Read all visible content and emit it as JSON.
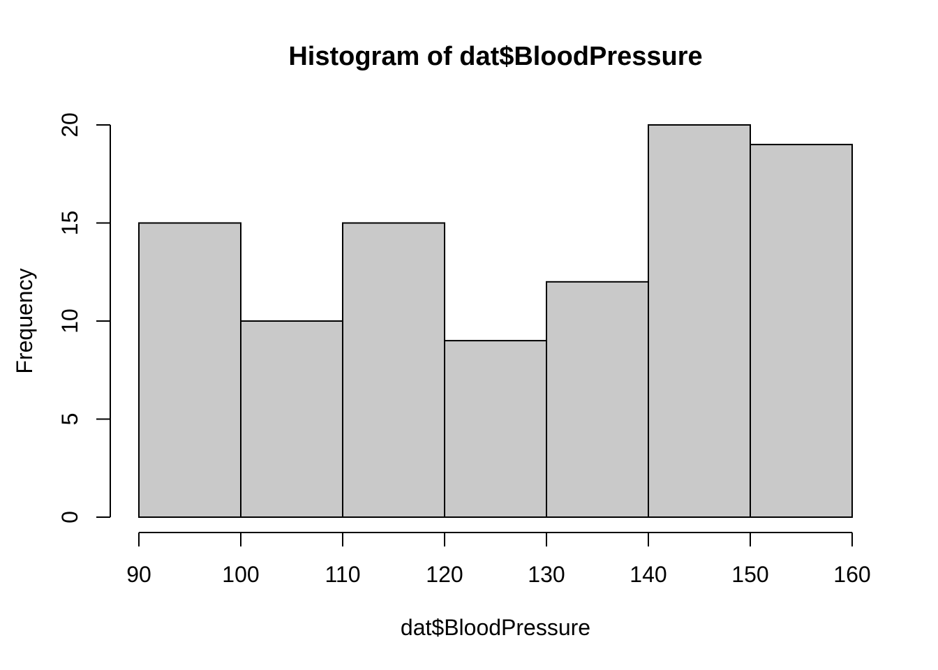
{
  "figure": {
    "background": "#ffffff"
  },
  "chart_data": {
    "type": "bar",
    "subtype": "histogram",
    "title": "Histogram of dat$BloodPressure",
    "xlabel": "dat$BloodPressure",
    "ylabel": "Frequency",
    "bin_edges": [
      90,
      100,
      110,
      120,
      130,
      140,
      150,
      160
    ],
    "counts": [
      15,
      10,
      15,
      9,
      12,
      20,
      19
    ],
    "x_ticks": [
      90,
      100,
      110,
      120,
      130,
      140,
      150,
      160
    ],
    "y_ticks": [
      0,
      5,
      10,
      15,
      20
    ],
    "xlim": [
      90,
      160
    ],
    "ylim": [
      0,
      20
    ],
    "grid": false,
    "legend_position": "none",
    "bar_fill": "#c9c9c9",
    "bar_stroke": "#000000",
    "axis_color": "#000000",
    "text_color": "#000000"
  }
}
